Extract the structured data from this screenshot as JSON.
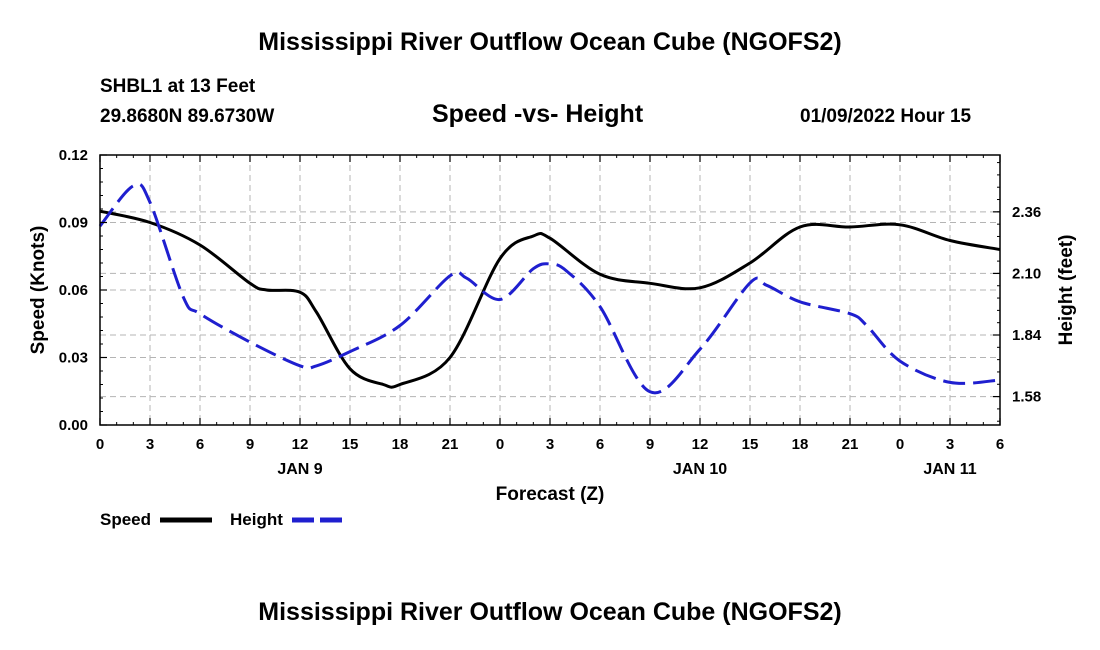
{
  "page": {
    "title": "Mississippi River Outflow Ocean Cube (NGOFS2)",
    "bottom_title": "Mississippi River Outflow Ocean Cube (NGOFS2)",
    "station": "SHBL1 at 13 Feet",
    "location": "29.8680N  89.6730W",
    "subtitle": "Speed -vs- Height",
    "timestamp": "01/09/2022 Hour 15"
  },
  "colors": {
    "speed": "#000000",
    "height": "#1f1fcf",
    "grid": "#b4b4b4"
  },
  "chart_data": {
    "type": "line",
    "xlabel": "Forecast (Z)",
    "ylabel": "Speed (Knots)",
    "y2label": "Height (feet)",
    "x_range": [
      0,
      54
    ],
    "x_tick_step": 3,
    "x_tick_labels": [
      "0",
      "3",
      "6",
      "9",
      "12",
      "15",
      "18",
      "21",
      "0",
      "3",
      "6",
      "9",
      "12",
      "15",
      "18",
      "21",
      "0",
      "3",
      "6"
    ],
    "date_labels": [
      {
        "label": "JAN 9",
        "at_hour": 12
      },
      {
        "label": "JAN 10",
        "at_hour": 36
      },
      {
        "label": "JAN 11",
        "at_hour": 51
      }
    ],
    "ylim": [
      0,
      0.12
    ],
    "yticks": [
      0,
      0.03,
      0.06,
      0.09,
      0.12
    ],
    "ytick_labels": [
      "0.00",
      "0.03",
      "0.06",
      "0.09",
      "0.12"
    ],
    "y2lim": [
      1.46,
      2.6
    ],
    "y2ticks": [
      1.58,
      1.84,
      2.1,
      2.36
    ],
    "y2tick_labels": [
      "1.58",
      "1.84",
      "2.10",
      "2.36"
    ],
    "series": [
      {
        "name": "Speed",
        "axis": "left",
        "style": "solid",
        "x": [
          0,
          3,
          6,
          9,
          10,
          12,
          13,
          15,
          17,
          18,
          21,
          24,
          26,
          27,
          30,
          33,
          36,
          39,
          42,
          45,
          48,
          51,
          54
        ],
        "values": [
          0.095,
          0.09,
          0.08,
          0.063,
          0.06,
          0.059,
          0.05,
          0.025,
          0.018,
          0.018,
          0.03,
          0.074,
          0.084,
          0.083,
          0.067,
          0.063,
          0.061,
          0.072,
          0.088,
          0.088,
          0.089,
          0.082,
          0.078
        ]
      },
      {
        "name": "Height",
        "axis": "right",
        "style": "dashed",
        "x": [
          0,
          2,
          3,
          5,
          6,
          9,
          12,
          13,
          15,
          18,
          21,
          22,
          24,
          26,
          27,
          28,
          30,
          33,
          36,
          39,
          40,
          42,
          45,
          46,
          48,
          51,
          54
        ],
        "values": [
          2.3,
          2.47,
          2.4,
          2.0,
          1.93,
          1.81,
          1.71,
          1.71,
          1.77,
          1.88,
          2.09,
          2.08,
          1.99,
          2.12,
          2.14,
          2.11,
          1.96,
          1.6,
          1.78,
          2.06,
          2.05,
          1.98,
          1.93,
          1.88,
          1.73,
          1.64,
          1.65
        ]
      }
    ],
    "legend": [
      {
        "label": "Speed"
      },
      {
        "label": "Height"
      }
    ]
  }
}
